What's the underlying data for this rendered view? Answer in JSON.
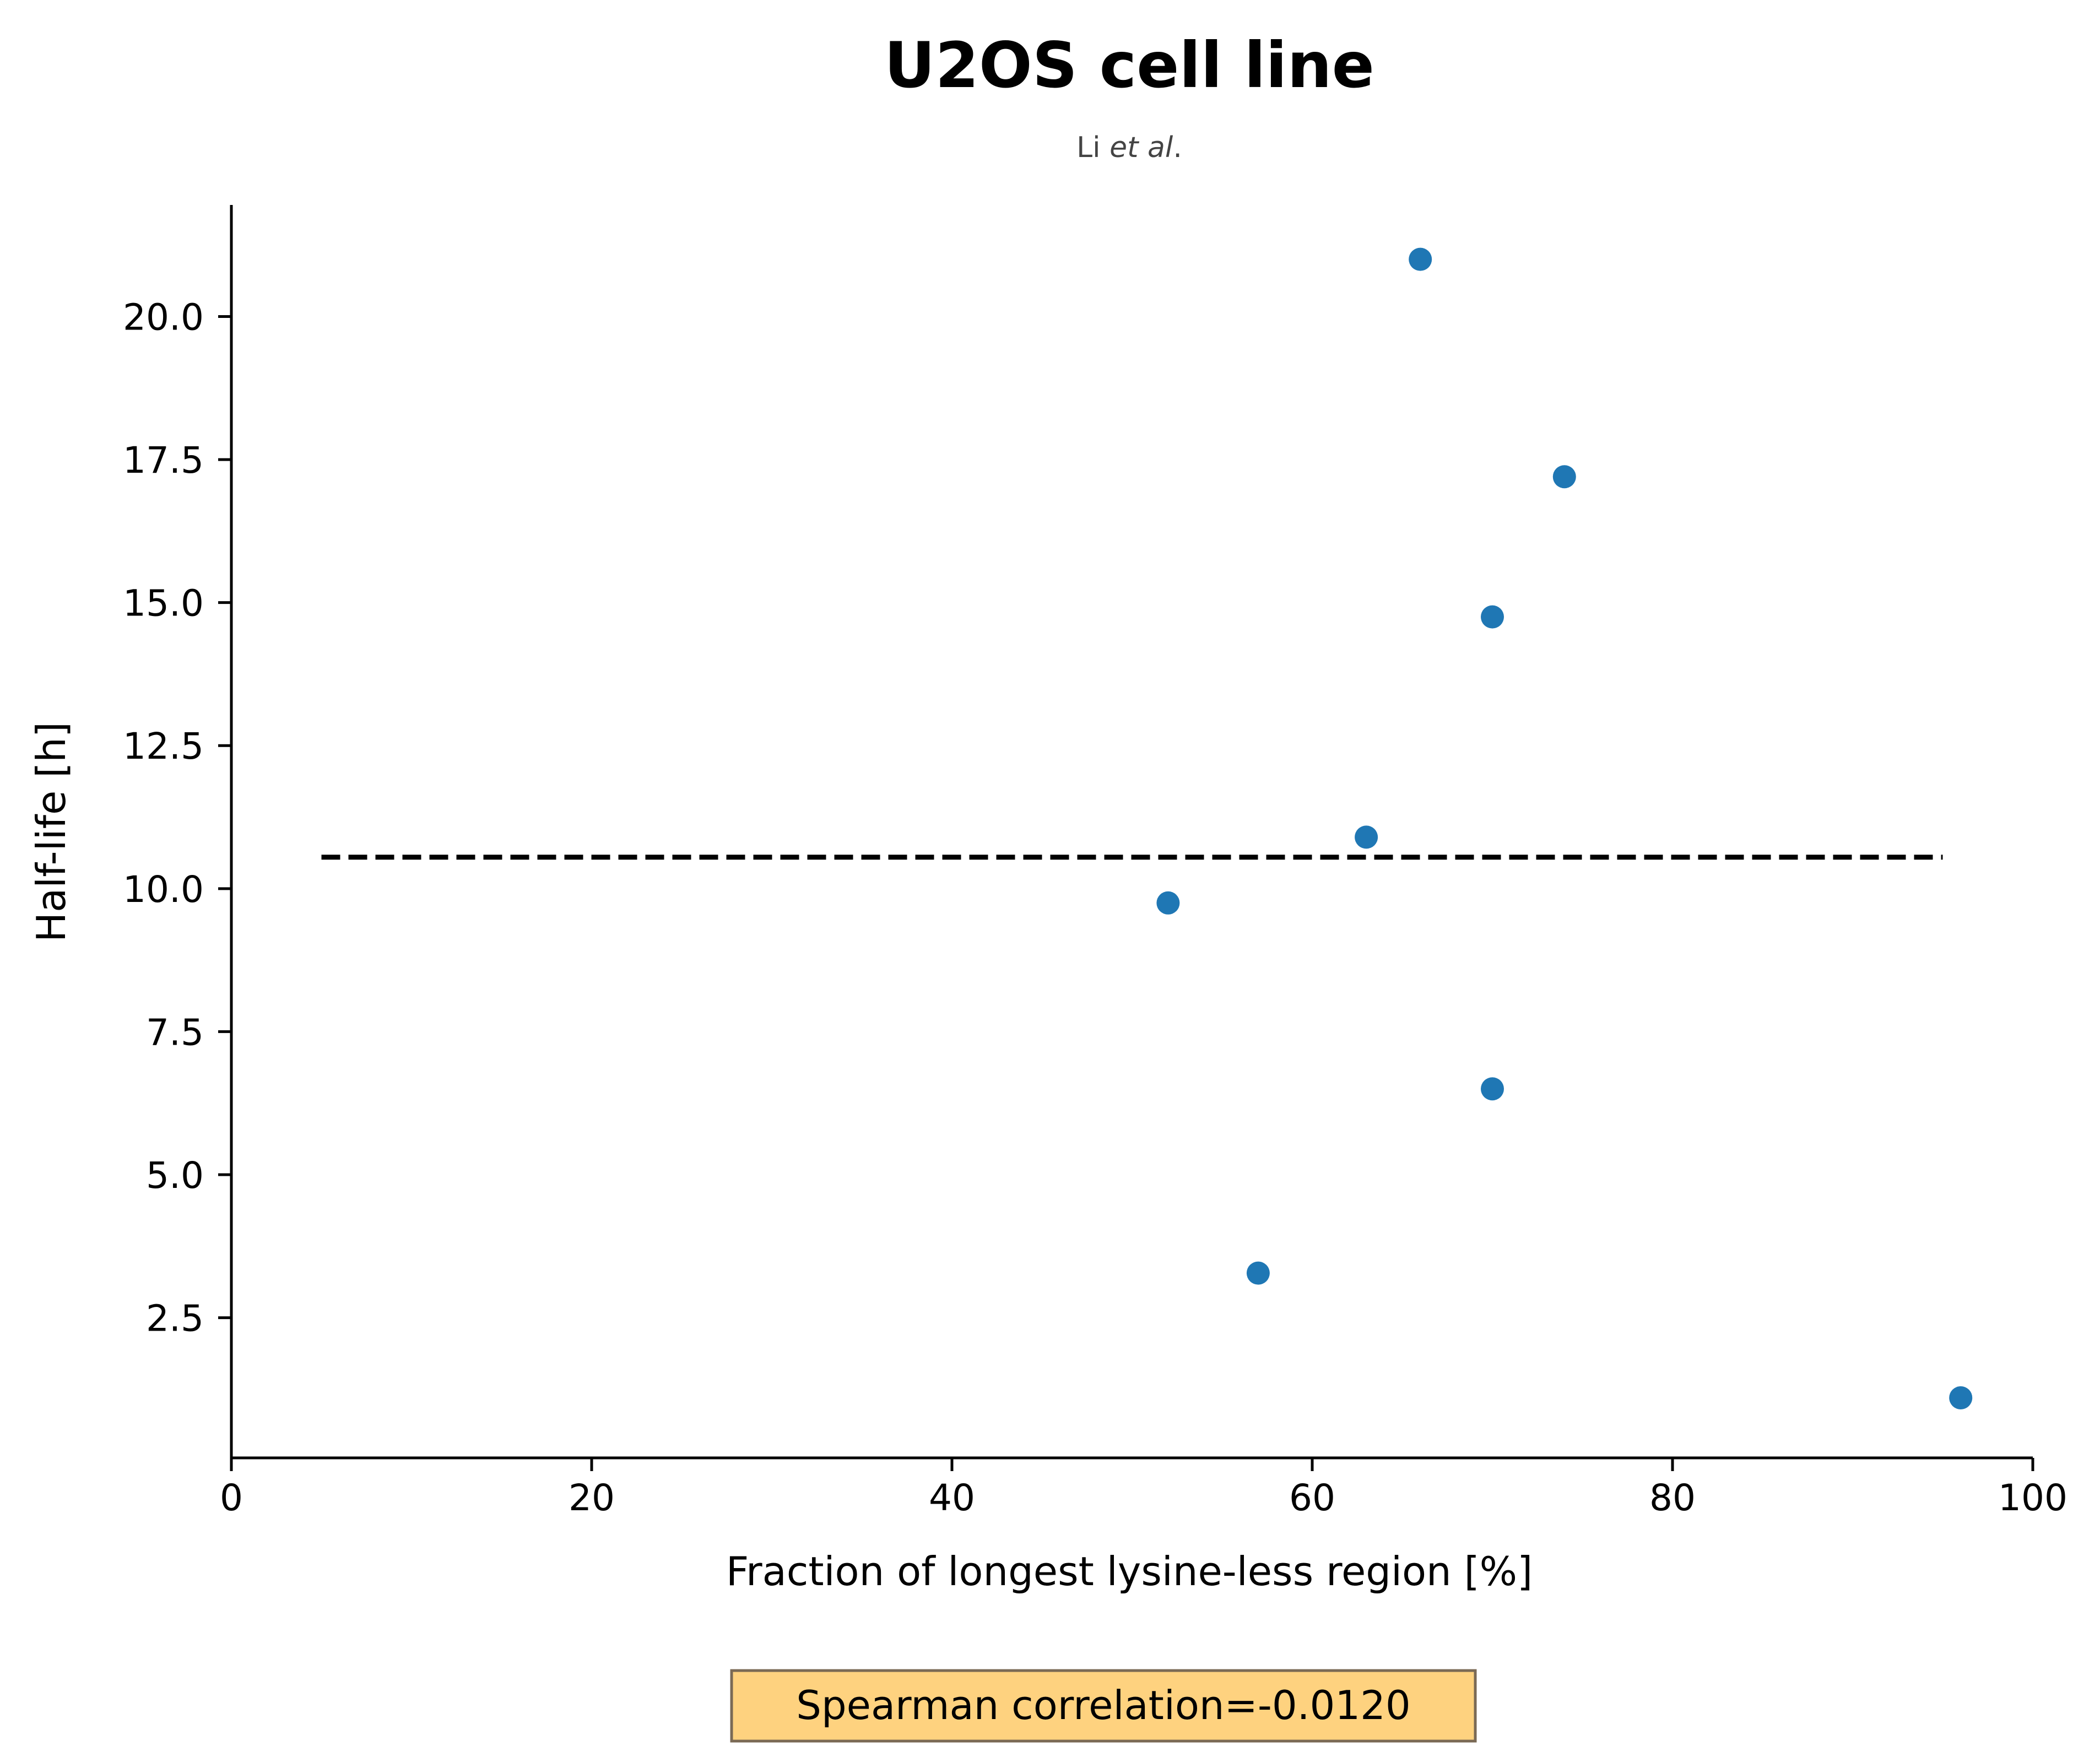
{
  "chart_data": {
    "type": "scatter",
    "title": "U2OS cell line",
    "subtitle": {
      "prefix": "Li ",
      "emphasis": "et al",
      "suffix": "."
    },
    "xlabel": "Fraction of longest lysine-less region [%]",
    "ylabel": "Half-life [h]",
    "xlim": [
      0,
      100
    ],
    "ylim": [
      0.05,
      21.95
    ],
    "xticks": [
      0,
      20,
      40,
      60,
      80,
      100
    ],
    "xtick_labels": [
      "0",
      "20",
      "40",
      "60",
      "80",
      "100"
    ],
    "yticks": [
      2.5,
      5.0,
      7.5,
      10.0,
      12.5,
      15.0,
      17.5,
      20.0
    ],
    "ytick_labels": [
      "2.5",
      "5.0",
      "7.5",
      "10.0",
      "12.5",
      "15.0",
      "17.5",
      "20.0"
    ],
    "grid": false,
    "series": [
      {
        "name": "proteins",
        "color": "#1f77b4",
        "x": [
          66,
          74,
          70,
          63,
          52,
          70,
          57,
          96
        ],
        "y": [
          21.0,
          17.2,
          14.75,
          10.9,
          9.75,
          6.5,
          3.28,
          1.1
        ]
      }
    ],
    "reference_line": {
      "style": "dashed",
      "color": "#000000",
      "x": [
        5,
        95
      ],
      "y": [
        10.55,
        10.55
      ]
    },
    "annotation": {
      "text": "Spearman correlation=-0.0120",
      "background": "#fed27f",
      "border": "#7a6a55"
    }
  }
}
